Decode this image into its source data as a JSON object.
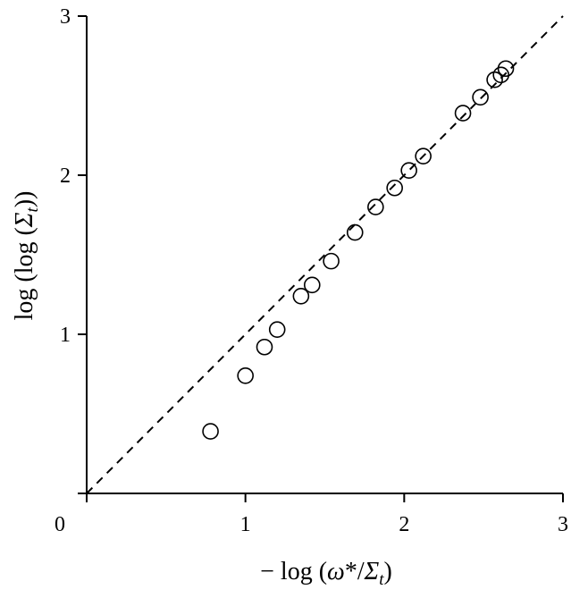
{
  "chart_data": {
    "type": "scatter",
    "xlabel": "− log (ω*/Σt)",
    "ylabel": "log (log (Σt))",
    "xlim": [
      0,
      3
    ],
    "ylim": [
      0,
      3
    ],
    "xticks": [
      "0",
      "1",
      "2",
      "3"
    ],
    "yticks": [
      "1",
      "2",
      "3"
    ],
    "grid": false,
    "reference_line": {
      "style": "dashed",
      "from": [
        0,
        0
      ],
      "to": [
        3,
        3
      ]
    },
    "marker": "open-circle",
    "points": [
      {
        "x": 0.78,
        "y": 0.39
      },
      {
        "x": 1.0,
        "y": 0.74
      },
      {
        "x": 1.12,
        "y": 0.92
      },
      {
        "x": 1.2,
        "y": 1.03
      },
      {
        "x": 1.35,
        "y": 1.24
      },
      {
        "x": 1.42,
        "y": 1.31
      },
      {
        "x": 1.54,
        "y": 1.46
      },
      {
        "x": 1.69,
        "y": 1.64
      },
      {
        "x": 1.82,
        "y": 1.8
      },
      {
        "x": 1.94,
        "y": 1.92
      },
      {
        "x": 2.03,
        "y": 2.03
      },
      {
        "x": 2.12,
        "y": 2.12
      },
      {
        "x": 2.37,
        "y": 2.39
      },
      {
        "x": 2.48,
        "y": 2.49
      },
      {
        "x": 2.57,
        "y": 2.6
      },
      {
        "x": 2.61,
        "y": 2.63
      },
      {
        "x": 2.64,
        "y": 2.67
      }
    ]
  }
}
